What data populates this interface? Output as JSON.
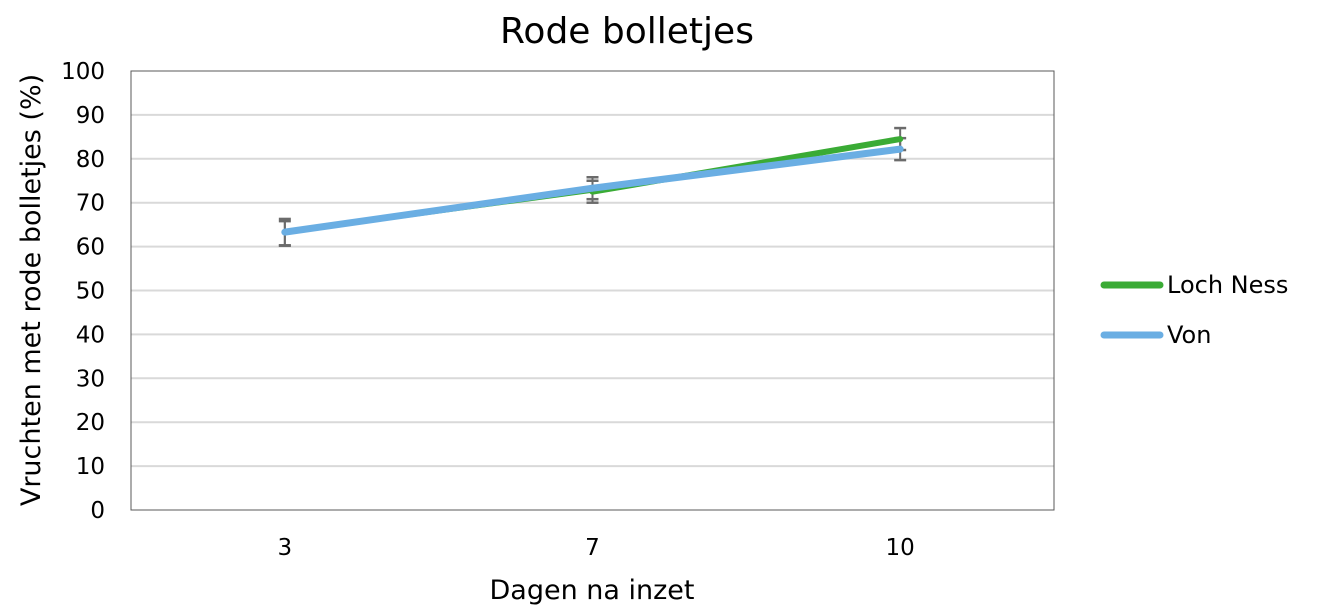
{
  "chart_data": {
    "type": "line",
    "title": "Rode bolletjes",
    "xlabel": "Dagen na inzet",
    "ylabel": "Vruchten met rode bolletjes (%)",
    "categories": [
      "3",
      "7",
      "10"
    ],
    "ylim": [
      0,
      100
    ],
    "yticks": [
      "0",
      "10",
      "20",
      "30",
      "40",
      "50",
      "60",
      "70",
      "80",
      "90",
      "100"
    ],
    "grid": true,
    "legend_position": "right",
    "series": [
      {
        "name": "Loch Ness",
        "color": "#3aab35",
        "values": [
          63,
          72.5,
          84.5
        ],
        "error": [
          2.8,
          2.5,
          2.5
        ]
      },
      {
        "name": "Von",
        "color": "#6aaee3",
        "values": [
          63.3,
          73.3,
          82.2
        ],
        "error": [
          3.0,
          2.5,
          2.5
        ]
      }
    ]
  }
}
